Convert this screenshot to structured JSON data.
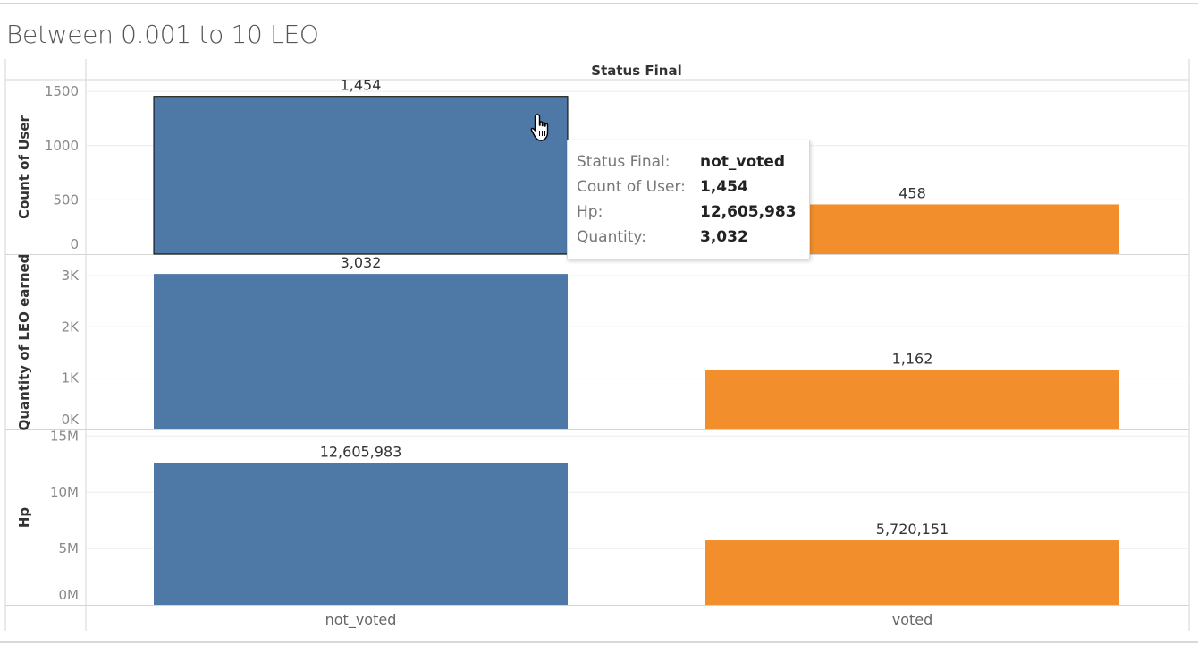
{
  "title": "Between 0.001 to 10 LEO",
  "column_header": "Status Final",
  "colors": {
    "not_voted": "#4e79a7",
    "voted": "#f28e2b",
    "grid": "#ebebeb",
    "rule": "#d4d4d4"
  },
  "chart_data": [
    {
      "type": "bar",
      "ylabel": "Count of User",
      "categories": [
        "not_voted",
        "voted"
      ],
      "values": [
        1454,
        458
      ],
      "value_labels": [
        "1,454",
        "458"
      ],
      "ylim": [
        0,
        1600
      ],
      "ticks": [
        0,
        500,
        1000,
        1500
      ],
      "tick_labels": [
        "0",
        "500",
        "1000",
        "1500"
      ]
    },
    {
      "type": "bar",
      "ylabel": "Quantity of LEO earned",
      "categories": [
        "not_voted",
        "voted"
      ],
      "values": [
        3032,
        1162
      ],
      "value_labels": [
        "3,032",
        "1,162"
      ],
      "ylim": [
        0,
        3400
      ],
      "ticks": [
        0,
        1000,
        2000,
        3000
      ],
      "tick_labels": [
        "0K",
        "1K",
        "2K",
        "3K"
      ]
    },
    {
      "type": "bar",
      "ylabel": "Hp",
      "categories": [
        "not_voted",
        "voted"
      ],
      "values": [
        12605983,
        5720151
      ],
      "value_labels": [
        "12,605,983",
        "5,720,151"
      ],
      "ylim": [
        0,
        15500000
      ],
      "ticks": [
        0,
        5000000,
        10000000,
        15000000
      ],
      "tick_labels": [
        "0M",
        "5M",
        "10M",
        "15M"
      ]
    }
  ],
  "tooltip": {
    "rows": [
      {
        "key": "Status Final:",
        "value": "not_voted"
      },
      {
        "key": "Count of User:",
        "value": "1,454"
      },
      {
        "key": "Hp:",
        "value": "12,605,983"
      },
      {
        "key": "Quantity:",
        "value": "3,032"
      }
    ]
  },
  "cursor_icon": "hand-pointer-icon"
}
